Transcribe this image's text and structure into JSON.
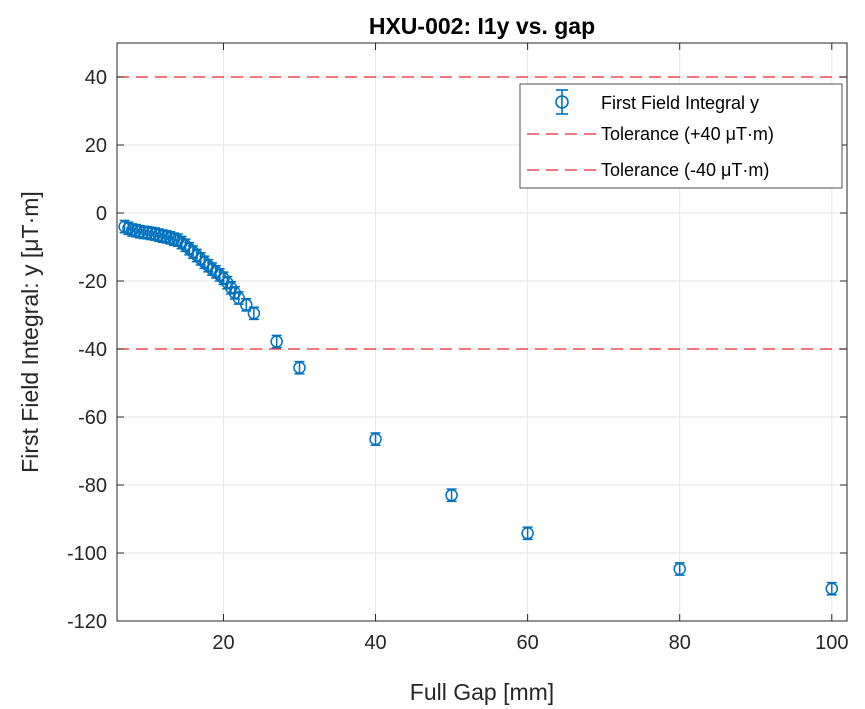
{
  "chart_data": {
    "type": "scatter",
    "title": "HXU-002: I1y vs. gap",
    "xlabel": "Full Gap [mm]",
    "ylabel": "First Field Integral: y [μT·m]",
    "xlim": [
      6,
      102
    ],
    "ylim": [
      -120,
      50
    ],
    "xticks": [
      20,
      40,
      60,
      80,
      100
    ],
    "yticks": [
      -120,
      -100,
      -80,
      -60,
      -40,
      -20,
      0,
      20,
      40
    ],
    "grid": true,
    "legend_position": "top-right",
    "colors": {
      "series": "#0072BD",
      "tolerance": "#D95319",
      "tolerance_line": "#E8282E"
    },
    "series": [
      {
        "name": "First Field Integral y",
        "style": "errorbar-circle",
        "x": [
          7,
          7.5,
          8,
          8.5,
          9,
          9.5,
          10,
          10.5,
          11,
          11.5,
          12,
          12.5,
          13,
          13.5,
          14,
          14.5,
          15,
          15.5,
          16,
          16.5,
          17,
          17.5,
          18,
          18.5,
          19,
          19.5,
          20,
          20.5,
          21,
          21.5,
          22,
          23,
          24,
          27,
          30,
          40,
          50,
          60,
          80,
          100
        ],
        "y": [
          -4,
          -4.5,
          -5,
          -5.2,
          -5.5,
          -5.7,
          -5.8,
          -6,
          -6.2,
          -6.5,
          -6.8,
          -7,
          -7.3,
          -7.7,
          -8,
          -8.7,
          -9.5,
          -10.5,
          -11.5,
          -12.5,
          -13.5,
          -14.5,
          -15.5,
          -16.5,
          -17.3,
          -18.2,
          -19.2,
          -20.5,
          -22,
          -23.5,
          -25,
          -27,
          -29.5,
          -37.8,
          -45.5,
          -66.5,
          -83,
          -94.2,
          -104.7,
          -110.5
        ],
        "error": [
          1.8,
          1.8,
          1.8,
          1.8,
          1.8,
          1.8,
          1.8,
          1.8,
          1.8,
          1.8,
          1.8,
          1.8,
          1.8,
          1.8,
          1.8,
          1.8,
          1.8,
          1.8,
          1.8,
          1.8,
          1.8,
          1.8,
          1.8,
          1.8,
          1.8,
          1.8,
          1.8,
          1.8,
          1.8,
          1.8,
          1.8,
          1.8,
          1.8,
          1.8,
          1.8,
          1.8,
          1.8,
          1.8,
          1.8,
          1.8
        ]
      },
      {
        "name": "Tolerance (+40 μT·m)",
        "style": "dashed-line",
        "y": 40
      },
      {
        "name": "Tolerance (-40 μT·m)",
        "style": "dashed-line",
        "y": -40
      }
    ]
  }
}
